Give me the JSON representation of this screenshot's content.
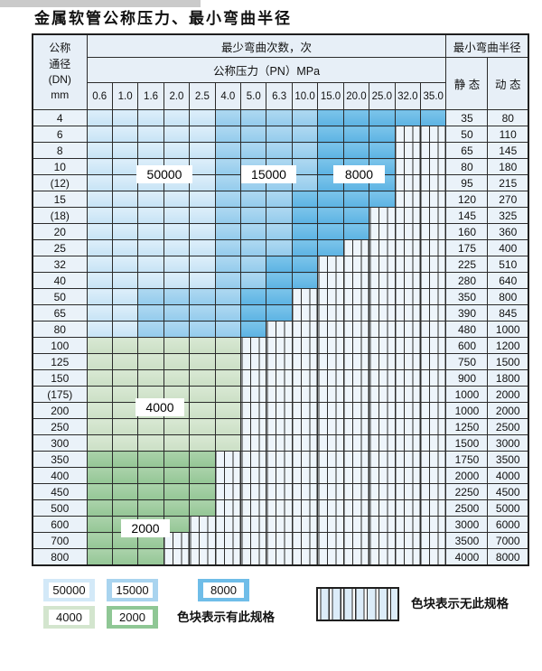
{
  "title": "金属软管公称压力、最小弯曲半径",
  "table_header": {
    "dn_lines": "公称\n通径\n(DN)\nmm",
    "bend_cycles": "最少弯曲次数，次",
    "pressure": "公称压力（PN）MPa",
    "bend_radius": "最小弯曲半径",
    "static": "静 态",
    "dynamic": "动 态"
  },
  "chart_data": {
    "type": "heatmap",
    "title": "金属软管公称压力、最小弯曲半径",
    "x_label": "公称压力（PN）MPa",
    "x_categories": [
      "0.6",
      "1.0",
      "1.6",
      "2.0",
      "2.5",
      "4.0",
      "5.0",
      "6.3",
      "10.0",
      "15.0",
      "20.0",
      "25.0",
      "32.0",
      "35.0"
    ],
    "y_label": "公称通径 (DN) mm",
    "radius_columns": [
      "静 态",
      "动 态"
    ],
    "zone_codes": {
      "L": "50000",
      "M": "15000",
      "D": "8000",
      "4": "4000",
      "2": "2000",
      "X": "无此规格"
    },
    "zone_labels": [
      {
        "text": "50000"
      },
      {
        "text": "15000"
      },
      {
        "text": "8000"
      },
      {
        "text": "4000"
      },
      {
        "text": "2000"
      }
    ],
    "rows": [
      {
        "dn": "4",
        "zones": "LLLLLMMMMDDDDD",
        "static": "35",
        "dynamic": "80"
      },
      {
        "dn": "6",
        "zones": "LLLLLMMMMDDDXX",
        "static": "50",
        "dynamic": "110"
      },
      {
        "dn": "8",
        "zones": "LLLLLMMMMDDDXX",
        "static": "65",
        "dynamic": "145"
      },
      {
        "dn": "10",
        "zones": "LLLLLMMMMDDDXX",
        "static": "80",
        "dynamic": "180"
      },
      {
        "dn": "(12)",
        "zones": "LLLLLMMMMDDDXX",
        "static": "95",
        "dynamic": "215"
      },
      {
        "dn": "15",
        "zones": "LLLLLMMMDDDDXX",
        "static": "120",
        "dynamic": "270"
      },
      {
        "dn": "(18)",
        "zones": "LLLLLMMMDDDXXX",
        "static": "145",
        "dynamic": "325"
      },
      {
        "dn": "20",
        "zones": "LLLLLMMMDDDXXX",
        "static": "160",
        "dynamic": "360"
      },
      {
        "dn": "25",
        "zones": "LLLLLMMMDDXXXX",
        "static": "175",
        "dynamic": "400"
      },
      {
        "dn": "32",
        "zones": "LLLLLMMDDXXXXX",
        "static": "225",
        "dynamic": "510"
      },
      {
        "dn": "40",
        "zones": "LLLLLMMDDXXXXX",
        "static": "280",
        "dynamic": "640"
      },
      {
        "dn": "50",
        "zones": "LLMMMMDDXXXXXX",
        "static": "350",
        "dynamic": "800"
      },
      {
        "dn": "65",
        "zones": "LLMMMMDDXXXXXX",
        "static": "390",
        "dynamic": "845"
      },
      {
        "dn": "80",
        "zones": "LLMMMMDXXXXXXX",
        "static": "480",
        "dynamic": "1000"
      },
      {
        "dn": "100",
        "zones": "444444XXXXXXXX",
        "static": "600",
        "dynamic": "1200"
      },
      {
        "dn": "125",
        "zones": "444444XXXXXXXX",
        "static": "750",
        "dynamic": "1500"
      },
      {
        "dn": "150",
        "zones": "444444XXXXXXXX",
        "static": "900",
        "dynamic": "1800"
      },
      {
        "dn": "(175)",
        "zones": "444444XXXXXXXX",
        "static": "1000",
        "dynamic": "2000"
      },
      {
        "dn": "200",
        "zones": "444444XXXXXXXX",
        "static": "1000",
        "dynamic": "2000"
      },
      {
        "dn": "250",
        "zones": "444444XXXXXXXX",
        "static": "1250",
        "dynamic": "2500"
      },
      {
        "dn": "300",
        "zones": "444444XXXXXXXX",
        "static": "1500",
        "dynamic": "3000"
      },
      {
        "dn": "350",
        "zones": "22222XXXXXXXXX",
        "static": "1750",
        "dynamic": "3500"
      },
      {
        "dn": "400",
        "zones": "22222XXXXXXXXX",
        "static": "2000",
        "dynamic": "4000"
      },
      {
        "dn": "450",
        "zones": "22222XXXXXXXXX",
        "static": "2250",
        "dynamic": "4500"
      },
      {
        "dn": "500",
        "zones": "22222XXXXXXXXX",
        "static": "2500",
        "dynamic": "5000"
      },
      {
        "dn": "600",
        "zones": "2222XXXXXXXXXX",
        "static": "3000",
        "dynamic": "6000"
      },
      {
        "dn": "700",
        "zones": "222XXXXXXXXXXX",
        "static": "3500",
        "dynamic": "7000"
      },
      {
        "dn": "800",
        "zones": "222XXXXXXXXXXX",
        "static": "4000",
        "dynamic": "8000"
      }
    ]
  },
  "legend": {
    "swatches": [
      {
        "label": "50000",
        "color": "#d3e9f8"
      },
      {
        "label": "15000",
        "color": "#a9d4ef"
      },
      {
        "label": "8000",
        "color": "#6fbde8"
      },
      {
        "label": "4000",
        "color": "#d3e5ce"
      },
      {
        "label": "2000",
        "color": "#8fc795"
      }
    ],
    "has_spec_text": "色块表示有此规格",
    "no_spec_text": "色块表示无此规格"
  },
  "colors": {
    "zone_50000": "#cde4f6",
    "zone_15000": "#a0d1ee",
    "zone_8000": "#6bbbe7",
    "zone_4000": "#d1e3cc",
    "zone_2000": "#9fcc9f",
    "grid_line": "#2b2b2b",
    "header_bg": "#e7eff7"
  }
}
